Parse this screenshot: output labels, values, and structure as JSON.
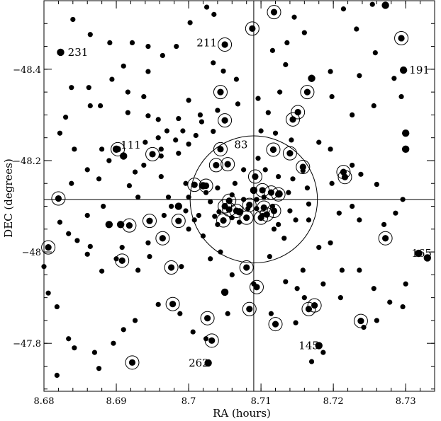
{
  "chart_data": {
    "type": "scatter",
    "xlabel": "RA (hours)",
    "ylabel": "DEC (degrees)",
    "xlim": [
      8.68,
      8.734
    ],
    "ylim": [
      -47.695,
      -48.55
    ],
    "x_ticks": [
      8.68,
      8.69,
      8.7,
      8.71,
      8.72,
      8.73
    ],
    "x_tick_labels": [
      "8.68",
      "8.69",
      "8.7",
      "8.71",
      "8.72",
      "8.73"
    ],
    "y_ticks": [
      -48.4,
      -48.2,
      -48.0,
      -47.8
    ],
    "y_tick_labels": [
      "−48.4",
      "−48.2",
      "−48",
      "−47.8"
    ],
    "crosshair": {
      "ra": 8.709,
      "dec": -48.115
    },
    "field_circle": {
      "ra": 8.709,
      "dec": -48.115,
      "radius_ra": 0.0088
    },
    "labels": [
      {
        "text": "231",
        "ra": 8.6833,
        "dec": -48.437
      },
      {
        "text": "211",
        "ra": 8.7011,
        "dec": -48.458
      },
      {
        "text": "191",
        "ra": 8.7305,
        "dec": -48.398
      },
      {
        "text": "111",
        "ra": 8.6906,
        "dec": -48.234
      },
      {
        "text": "83",
        "ra": 8.7063,
        "dec": -48.235
      },
      {
        "text": "165",
        "ra": 8.7308,
        "dec": -47.997
      },
      {
        "text": "145",
        "ra": 8.7152,
        "dec": -47.795
      },
      {
        "text": "262",
        "ra": 8.7,
        "dec": -47.757
      }
    ],
    "circled": [
      [
        8.7118,
        -48.525
      ],
      [
        8.7088,
        -48.489
      ],
      [
        8.7294,
        -48.468
      ],
      [
        8.705,
        -48.454
      ],
      [
        8.7164,
        -48.35
      ],
      [
        8.7044,
        -48.35
      ],
      [
        8.7151,
        -48.306
      ],
      [
        8.705,
        -48.288
      ],
      [
        8.7144,
        -48.29
      ],
      [
        8.6902,
        -48.225
      ],
      [
        8.695,
        -48.214
      ],
      [
        8.7044,
        -48.225
      ],
      [
        8.7117,
        -48.224
      ],
      [
        8.714,
        -48.216
      ],
      [
        8.7054,
        -48.192
      ],
      [
        8.7038,
        -48.19
      ],
      [
        8.7158,
        -48.186
      ],
      [
        8.7214,
        -48.175
      ],
      [
        8.7216,
        -48.164
      ],
      [
        8.7092,
        -48.165
      ],
      [
        8.7008,
        -48.147
      ],
      [
        8.7024,
        -48.145
      ],
      [
        8.7102,
        -48.135
      ],
      [
        8.7114,
        -48.13
      ],
      [
        8.7124,
        -48.126
      ],
      [
        8.682,
        -48.117
      ],
      [
        8.7056,
        -48.112
      ],
      [
        8.7084,
        -48.103
      ],
      [
        8.705,
        -48.1
      ],
      [
        8.7104,
        -48.097
      ],
      [
        8.7118,
        -48.09
      ],
      [
        8.7056,
        -48.093
      ],
      [
        8.7066,
        -48.09
      ],
      [
        8.7108,
        -48.082
      ],
      [
        8.708,
        -48.075
      ],
      [
        8.6986,
        -48.068
      ],
      [
        8.6946,
        -48.068
      ],
      [
        8.6918,
        -48.058
      ],
      [
        8.71,
        -48.075
      ],
      [
        8.7048,
        -48.069
      ],
      [
        8.6964,
        -48.03
      ],
      [
        8.7272,
        -48.03
      ],
      [
        8.6806,
        -48.01
      ],
      [
        8.6908,
        -47.981
      ],
      [
        8.6976,
        -47.966
      ],
      [
        8.708,
        -47.966
      ],
      [
        8.7094,
        -47.923
      ],
      [
        8.6978,
        -47.886
      ],
      [
        8.7084,
        -47.875
      ],
      [
        8.7166,
        -47.875
      ],
      [
        8.7174,
        -47.883
      ],
      [
        8.7026,
        -47.855
      ],
      [
        8.712,
        -47.842
      ],
      [
        8.7238,
        -47.849
      ],
      [
        8.7032,
        -47.806
      ],
      [
        8.6922,
        -47.758
      ]
    ],
    "points_large": [
      [
        8.6823,
        -48.437
      ],
      [
        8.7297,
        -48.398
      ],
      [
        8.69,
        -48.225
      ],
      [
        8.73,
        -48.225
      ],
      [
        8.73,
        -48.26
      ],
      [
        8.718,
        -47.795
      ],
      [
        8.7318,
        -47.997
      ],
      [
        8.7027,
        -47.757
      ],
      [
        8.705,
        -47.912
      ],
      [
        8.689,
        -48.06
      ],
      [
        8.6986,
        -48.1
      ],
      [
        8.702,
        -48.145
      ],
      [
        8.709,
        -48.135
      ],
      [
        8.7125,
        -48.127
      ],
      [
        8.6906,
        -48.06
      ],
      [
        8.707,
        -48.088
      ],
      [
        8.691,
        -48.21
      ],
      [
        8.733,
        -47.987
      ],
      [
        8.7272,
        -48.54
      ],
      [
        8.717,
        -48.38
      ]
    ],
    "points_medium": [
      [
        8.684,
        -48.509
      ],
      [
        8.6864,
        -48.476
      ],
      [
        8.6891,
        -48.458
      ],
      [
        8.6922,
        -48.458
      ],
      [
        8.6944,
        -48.45
      ],
      [
        8.6983,
        -48.45
      ],
      [
        8.7002,
        -48.502
      ],
      [
        8.7025,
        -48.536
      ],
      [
        8.7035,
        -48.52
      ],
      [
        8.7146,
        -48.514
      ],
      [
        8.7214,
        -48.532
      ],
      [
        8.7232,
        -48.488
      ],
      [
        8.7254,
        -48.542
      ],
      [
        8.716,
        -48.48
      ],
      [
        8.7136,
        -48.458
      ],
      [
        8.7116,
        -48.441
      ],
      [
        8.691,
        -48.407
      ],
      [
        8.6944,
        -48.395
      ],
      [
        8.6964,
        -48.43
      ],
      [
        8.7034,
        -48.414
      ],
      [
        8.7048,
        -48.396
      ],
      [
        8.7066,
        -48.378
      ],
      [
        8.7134,
        -48.41
      ],
      [
        8.7196,
        -48.395
      ],
      [
        8.7258,
        -48.436
      ],
      [
        8.7284,
        -48.38
      ],
      [
        8.7236,
        -48.386
      ],
      [
        8.6838,
        -48.36
      ],
      [
        8.6862,
        -48.36
      ],
      [
        8.6894,
        -48.378
      ],
      [
        8.6916,
        -48.35
      ],
      [
        8.6938,
        -48.34
      ],
      [
        8.6878,
        -48.32
      ],
      [
        8.6864,
        -48.32
      ],
      [
        8.6916,
        -48.305
      ],
      [
        8.6944,
        -48.298
      ],
      [
        8.7,
        -48.332
      ],
      [
        8.7018,
        -48.285
      ],
      [
        8.7068,
        -48.324
      ],
      [
        8.7096,
        -48.336
      ],
      [
        8.711,
        -48.305
      ],
      [
        8.7126,
        -48.35
      ],
      [
        8.7198,
        -48.34
      ],
      [
        8.7226,
        -48.3
      ],
      [
        8.7256,
        -48.32
      ],
      [
        8.7294,
        -48.34
      ],
      [
        8.683,
        -48.295
      ],
      [
        8.6822,
        -48.26
      ],
      [
        8.6842,
        -48.225
      ],
      [
        8.688,
        -48.225
      ],
      [
        8.689,
        -48.2
      ],
      [
        8.686,
        -48.18
      ],
      [
        8.6876,
        -48.16
      ],
      [
        8.6838,
        -48.15
      ],
      [
        8.6882,
        -48.1
      ],
      [
        8.686,
        -48.08
      ],
      [
        8.6822,
        -48.065
      ],
      [
        8.6834,
        -48.04
      ],
      [
        8.6846,
        -48.025
      ],
      [
        8.68,
        -47.968
      ],
      [
        8.6806,
        -47.91
      ],
      [
        8.6818,
        -47.88
      ],
      [
        8.6834,
        -47.81
      ],
      [
        8.6842,
        -47.79
      ],
      [
        8.687,
        -47.78
      ],
      [
        8.6818,
        -47.73
      ],
      [
        8.6876,
        -47.745
      ],
      [
        8.6896,
        -47.8
      ],
      [
        8.691,
        -47.83
      ],
      [
        8.6926,
        -47.85
      ],
      [
        8.6958,
        -47.885
      ],
      [
        8.6988,
        -47.865
      ],
      [
        8.7006,
        -47.825
      ],
      [
        8.7024,
        -47.81
      ],
      [
        8.7054,
        -47.865
      ],
      [
        8.706,
        -47.95
      ],
      [
        8.709,
        -47.93
      ],
      [
        8.7112,
        -47.99
      ],
      [
        8.7134,
        -47.935
      ],
      [
        8.715,
        -47.92
      ],
      [
        8.716,
        -47.9
      ],
      [
        8.7158,
        -47.96
      ],
      [
        8.7186,
        -47.93
      ],
      [
        8.721,
        -47.9
      ],
      [
        8.7212,
        -47.96
      ],
      [
        8.7236,
        -47.96
      ],
      [
        8.7256,
        -47.92
      ],
      [
        8.7278,
        -47.89
      ],
      [
        8.7296,
        -47.88
      ],
      [
        8.73,
        -47.93
      ],
      [
        8.726,
        -47.85
      ],
      [
        8.717,
        -47.76
      ],
      [
        8.7186,
        -47.78
      ],
      [
        8.7242,
        -47.835
      ],
      [
        8.7114,
        -47.865
      ],
      [
        8.7148,
        -47.845
      ],
      [
        8.693,
        -47.96
      ],
      [
        8.6946,
        -47.99
      ],
      [
        8.69,
        -47.985
      ],
      [
        8.688,
        -47.958
      ],
      [
        8.686,
        -47.995
      ],
      [
        8.6864,
        -48.012
      ],
      [
        8.6908,
        -48.01
      ],
      [
        8.6944,
        -48.02
      ],
      [
        8.6966,
        -48.08
      ],
      [
        8.6996,
        -48.09
      ],
      [
        8.7014,
        -48.08
      ],
      [
        8.7,
        -48.05
      ],
      [
        8.702,
        -48.035
      ],
      [
        8.704,
        -48.06
      ],
      [
        8.7044,
        -48.0
      ],
      [
        8.703,
        -47.985
      ],
      [
        8.699,
        -47.968
      ],
      [
        8.7118,
        -48.05
      ],
      [
        8.7148,
        -48.07
      ],
      [
        8.7166,
        -48.07
      ],
      [
        8.718,
        -48.01
      ],
      [
        8.7196,
        -48.02
      ],
      [
        8.7208,
        -48.085
      ],
      [
        8.7226,
        -48.1
      ],
      [
        8.7198,
        -48.15
      ],
      [
        8.7158,
        -48.178
      ],
      [
        8.718,
        -48.24
      ],
      [
        8.7196,
        -48.225
      ],
      [
        8.7226,
        -48.19
      ],
      [
        8.7238,
        -48.17
      ],
      [
        8.726,
        -48.148
      ],
      [
        8.7296,
        -48.115
      ],
      [
        8.7286,
        -48.085
      ],
      [
        8.727,
        -48.06
      ],
      [
        8.7236,
        -48.07
      ],
      [
        8.7166,
        -48.105
      ],
      [
        8.7138,
        -48.13
      ],
      [
        8.7164,
        -48.14
      ],
      [
        8.7144,
        -48.16
      ],
      [
        8.7124,
        -48.165
      ],
      [
        8.7106,
        -48.18
      ],
      [
        8.7076,
        -48.18
      ],
      [
        8.7096,
        -48.205
      ],
      [
        8.712,
        -48.26
      ],
      [
        8.71,
        -48.265
      ],
      [
        8.7142,
        -48.245
      ],
      [
        8.7,
        -48.236
      ],
      [
        8.6986,
        -48.216
      ],
      [
        8.6962,
        -48.21
      ],
      [
        8.6938,
        -48.19
      ],
      [
        8.6926,
        -48.175
      ],
      [
        8.6918,
        -48.145
      ],
      [
        8.693,
        -48.12
      ],
      [
        8.6962,
        -48.165
      ],
      [
        8.6996,
        -48.15
      ],
      [
        8.6972,
        -48.12
      ],
      [
        8.6976,
        -48.1
      ],
      [
        8.7,
        -48.12
      ],
      [
        8.703,
        -48.11
      ],
      [
        8.7024,
        -48.13
      ],
      [
        8.704,
        -48.14
      ],
      [
        8.7064,
        -48.15
      ],
      [
        8.706,
        -48.125
      ],
      [
        8.7076,
        -48.115
      ],
      [
        8.7094,
        -48.115
      ],
      [
        8.7104,
        -48.12
      ],
      [
        8.7082,
        -48.095
      ],
      [
        8.7094,
        -48.095
      ],
      [
        8.7102,
        -48.08
      ],
      [
        8.706,
        -48.075
      ],
      [
        8.707,
        -48.065
      ],
      [
        8.7036,
        -48.078
      ],
      [
        8.7042,
        -48.088
      ],
      [
        8.7008,
        -48.07
      ],
      [
        8.7116,
        -48.1
      ],
      [
        8.714,
        -48.09
      ],
      [
        8.7124,
        -48.06
      ],
      [
        8.7132,
        -48.03
      ],
      [
        8.6958,
        -48.25
      ],
      [
        8.694,
        -48.24
      ],
      [
        8.697,
        -48.265
      ],
      [
        8.6992,
        -48.265
      ],
      [
        8.701,
        -48.255
      ],
      [
        8.7034,
        -48.264
      ],
      [
        8.6958,
        -48.29
      ],
      [
        8.6986,
        -48.292
      ],
      [
        8.7016,
        -48.3
      ],
      [
        8.704,
        -48.31
      ],
      [
        8.6982,
        -48.245
      ],
      [
        8.6962,
        -48.225
      ]
    ]
  }
}
